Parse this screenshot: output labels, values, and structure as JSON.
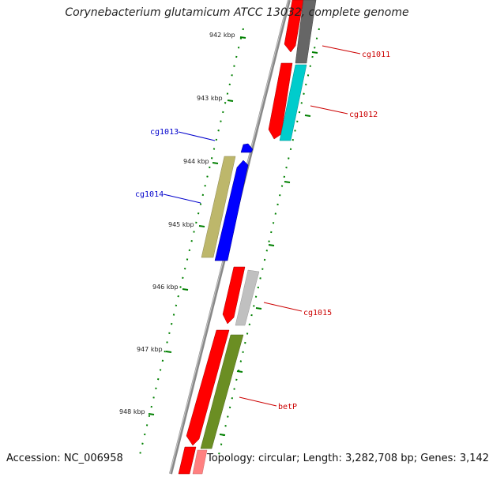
{
  "map": {
    "title": "Corynebacterium glutamicum ATCC 13032, complete genome",
    "accession": "Accession: NC_006958",
    "topology": "Topology: circular; Length: 3,282,708 bp; Genes: 3,142"
  },
  "ticks": [
    {
      "label": "942 kbp"
    },
    {
      "label": "943 kbp"
    },
    {
      "label": "944 kbp"
    },
    {
      "label": "945 kbp"
    },
    {
      "label": "946 kbp"
    },
    {
      "label": "947 kbp"
    },
    {
      "label": "948 kbp"
    }
  ],
  "gene_labels": [
    {
      "name": "cg1011",
      "color": "#cc0000"
    },
    {
      "name": "cg1012",
      "color": "#cc0000"
    },
    {
      "name": "cg1013",
      "color": "#0000cc"
    },
    {
      "name": "cg1014",
      "color": "#0000cc"
    },
    {
      "name": "cg1015",
      "color": "#cc0000"
    },
    {
      "name": "betP",
      "color": "#cc0000"
    }
  ],
  "colors": {
    "backbone": "#888888",
    "forward_cds": "#ff0000",
    "reverse_cds": "#0000ff",
    "tick_green": "#008000",
    "cog_gray": "#666666",
    "cog_cyan": "#00cccc",
    "cog_khaki": "#bdb76b",
    "cog_lightgray": "#c0c0c0",
    "cog_olive": "#6b8e23",
    "cog_pink": "#ff8080"
  }
}
